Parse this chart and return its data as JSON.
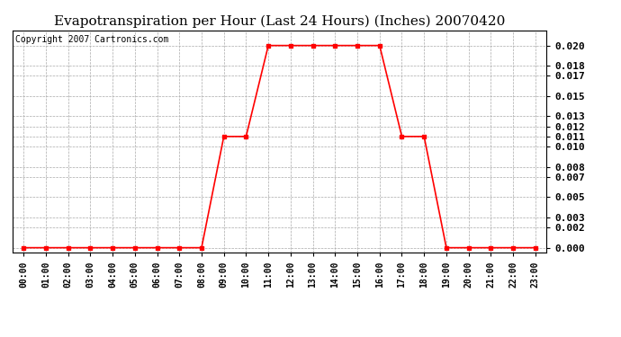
{
  "title": "Evapotranspiration per Hour (Last 24 Hours) (Inches) 20070420",
  "copyright_text": "Copyright 2007 Cartronics.com",
  "hours": [
    "00:00",
    "01:00",
    "02:00",
    "03:00",
    "04:00",
    "05:00",
    "06:00",
    "07:00",
    "08:00",
    "09:00",
    "10:00",
    "11:00",
    "12:00",
    "13:00",
    "14:00",
    "15:00",
    "16:00",
    "17:00",
    "18:00",
    "19:00",
    "20:00",
    "21:00",
    "22:00",
    "23:00"
  ],
  "values": [
    0.0,
    0.0,
    0.0,
    0.0,
    0.0,
    0.0,
    0.0,
    0.0,
    0.0,
    0.011,
    0.011,
    0.02,
    0.02,
    0.02,
    0.02,
    0.02,
    0.02,
    0.011,
    0.011,
    0.0,
    0.0,
    0.0,
    0.0,
    0.0
  ],
  "line_color": "#ff0000",
  "marker": "s",
  "marker_size": 3,
  "bg_color": "#ffffff",
  "grid_color": "#aaaaaa",
  "ylim": [
    -0.0005,
    0.0215
  ],
  "yticks": [
    0.0,
    0.002,
    0.003,
    0.005,
    0.007,
    0.008,
    0.01,
    0.011,
    0.012,
    0.013,
    0.015,
    0.017,
    0.018,
    0.02
  ],
  "title_fontsize": 11,
  "copyright_fontsize": 7
}
